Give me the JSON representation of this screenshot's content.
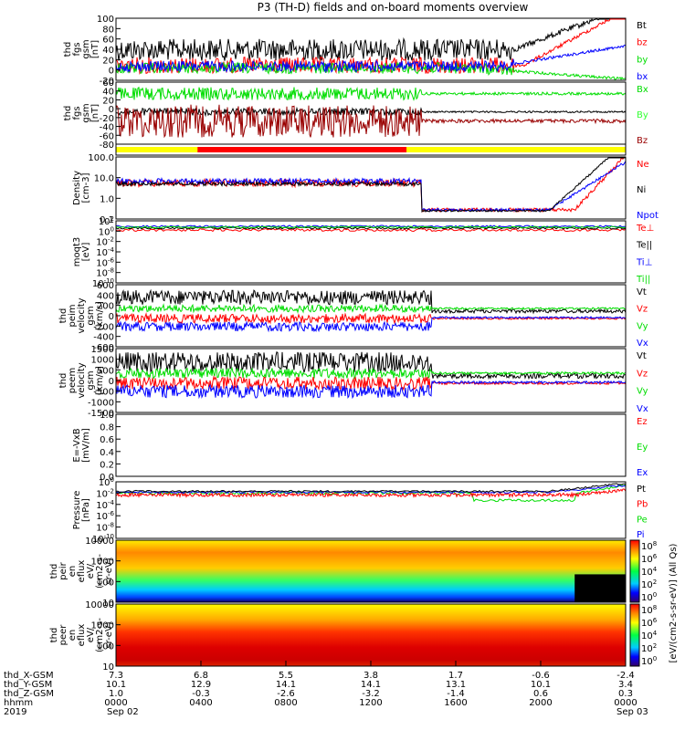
{
  "title": "P3 (TH-D) fields and on-board moments overview",
  "colors": {
    "black": "#000000",
    "red": "#ff0000",
    "green": "#00dd00",
    "blue": "#0000ff",
    "darkred": "#990000",
    "yellow": "#ffff00",
    "brightgreen": "#33ff33"
  },
  "panels": [
    {
      "id": "fgs1",
      "ylabel": [
        "thd",
        "fgs",
        "gsm",
        "[nT]"
      ],
      "ticks": [
        "100",
        "80",
        "60",
        "40",
        "20",
        "0",
        "-20"
      ],
      "legend": [
        {
          "t": "Bt",
          "c": "black"
        },
        {
          "t": "bz",
          "c": "red"
        },
        {
          "t": "by",
          "c": "green"
        },
        {
          "t": "bx",
          "c": "blue"
        }
      ]
    },
    {
      "id": "fgs2",
      "ylabel": [
        "thd",
        "fgs",
        "gsm",
        "[nT]"
      ],
      "ticks": [
        "60",
        "40",
        "20",
        "0",
        "-20",
        "-40",
        "-60",
        "-80"
      ],
      "legend": [
        {
          "t": "Bx",
          "c": "green"
        },
        {
          "t": "By",
          "c": "brightgreen"
        },
        {
          "t": "Bz",
          "c": "darkred"
        }
      ]
    },
    {
      "id": "mode",
      "ylabel": [],
      "ticks": [],
      "legend": []
    },
    {
      "id": "density",
      "ylabel": [
        "Density",
        "[cm-3]"
      ],
      "ticks": [
        "100.0",
        "10.0",
        "1.0",
        "0.1"
      ],
      "legend": [
        {
          "t": "Ne",
          "c": "red"
        },
        {
          "t": "Ni",
          "c": "black"
        },
        {
          "t": "Npot",
          "c": "blue"
        }
      ]
    },
    {
      "id": "temp",
      "ylabel": [
        "moqt3",
        "[eV]"
      ],
      "ticks": [
        "10^2",
        "10^0",
        "10^-2",
        "10^-4",
        "10^-6",
        "10^-8",
        "10^-10"
      ],
      "legend": [
        {
          "t": "Te⊥",
          "c": "red"
        },
        {
          "t": "Te||",
          "c": "black"
        },
        {
          "t": "Ti⊥",
          "c": "blue"
        },
        {
          "t": "Ti||",
          "c": "green"
        }
      ]
    },
    {
      "id": "peim",
      "ylabel": [
        "thd",
        "peim",
        "velocity",
        "gsm",
        "[km/s]"
      ],
      "ticks": [
        "600",
        "400",
        "200",
        "0",
        "-200",
        "-400",
        "-600"
      ],
      "legend": [
        {
          "t": "Vt",
          "c": "black"
        },
        {
          "t": "Vz",
          "c": "red"
        },
        {
          "t": "Vy",
          "c": "green"
        },
        {
          "t": "Vx",
          "c": "blue"
        }
      ]
    },
    {
      "id": "peem",
      "ylabel": [
        "thd",
        "peem",
        "velocity",
        "gsm",
        "[km/s]"
      ],
      "ticks": [
        "1500",
        "1000",
        "500",
        "0",
        "-500",
        "-1000",
        "-1500"
      ],
      "legend": [
        {
          "t": "Vt",
          "c": "black"
        },
        {
          "t": "Vz",
          "c": "red"
        },
        {
          "t": "Vy",
          "c": "green"
        },
        {
          "t": "Vx",
          "c": "blue"
        }
      ]
    },
    {
      "id": "efield",
      "ylabel": [
        "E=-VxB",
        "[mV/m]"
      ],
      "ticks": [
        "1.0",
        "0.8",
        "0.6",
        "0.4",
        "0.2",
        "0.0"
      ],
      "legend": [
        {
          "t": "Ez",
          "c": "red"
        },
        {
          "t": "Ey",
          "c": "green"
        },
        {
          "t": "Ex",
          "c": "blue"
        }
      ]
    },
    {
      "id": "pressure",
      "ylabel": [
        "Pressure",
        "[nPa]"
      ],
      "ticks": [
        "10^0",
        "10^-2",
        "10^-4",
        "10^-6",
        "10^-8",
        "10^-10"
      ],
      "legend": [
        {
          "t": "Pt",
          "c": "black"
        },
        {
          "t": "Pb",
          "c": "red"
        },
        {
          "t": "Pe",
          "c": "green"
        },
        {
          "t": "Pi",
          "c": "blue"
        }
      ]
    },
    {
      "id": "peir",
      "ylabel": [
        "thd",
        "peir",
        "en",
        "eflux",
        "eV/",
        "(cm2-s-",
        "sr-eV)"
      ],
      "ticks": [
        "10000",
        "1000",
        "100",
        "10"
      ],
      "legend": []
    },
    {
      "id": "peer",
      "ylabel": [
        "thd",
        "peer",
        "en",
        "eflux",
        "eV/",
        "(cm2-s-",
        "sr-eV)"
      ],
      "ticks": [
        "10000",
        "1000",
        "100",
        "10"
      ],
      "legend": []
    }
  ],
  "colorbar": {
    "label": "[eV/(cm2-s-sr-eV)] (All Qs)",
    "ticks1": [
      "10^8",
      "10^6",
      "10^4",
      "10^2",
      "10^0"
    ],
    "ticks2": [
      "10^8",
      "10^6",
      "10^4",
      "10^2",
      "10^0"
    ]
  },
  "xaxis": {
    "row_labels": [
      "thd_X-GSM",
      "thd_Y-GSM",
      "thd_Z-GSM",
      "hhmm",
      "2019"
    ],
    "columns": [
      {
        "v": [
          "7.3",
          "10.1",
          "1.0",
          "0000",
          "Sep 02"
        ]
      },
      {
        "v": [
          "6.8",
          "12.9",
          "-0.3",
          "0400",
          ""
        ]
      },
      {
        "v": [
          "5.5",
          "14.1",
          "-2.6",
          "0800",
          ""
        ]
      },
      {
        "v": [
          "3.8",
          "14.1",
          "-3.2",
          "1200",
          ""
        ]
      },
      {
        "v": [
          "1.7",
          "13.1",
          "-1.4",
          "1600",
          ""
        ]
      },
      {
        "v": [
          "-0.6",
          "10.1",
          "0.6",
          "2000",
          ""
        ]
      },
      {
        "v": [
          "-2.4",
          "3.4",
          "0.3",
          "0000",
          "Sep 03"
        ]
      }
    ]
  }
}
